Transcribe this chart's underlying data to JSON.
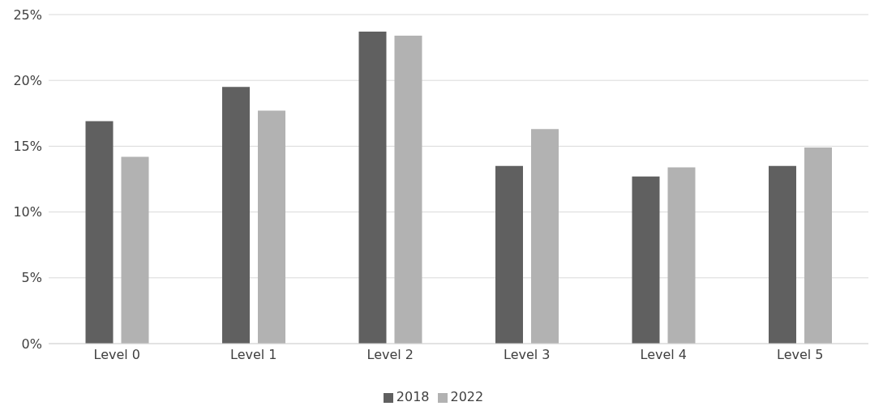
{
  "chart_data": {
    "type": "bar",
    "categories": [
      "Level 0",
      "Level 1",
      "Level 2",
      "Level 3",
      "Level 4",
      "Level 5"
    ],
    "series": [
      {
        "name": "2018",
        "color": "#606060",
        "values": [
          16.9,
          19.5,
          23.7,
          13.5,
          12.7,
          13.5
        ]
      },
      {
        "name": "2022",
        "color": "#b2b2b2",
        "values": [
          14.2,
          17.7,
          23.4,
          16.3,
          13.4,
          14.9
        ]
      }
    ],
    "ylim": [
      0,
      25
    ],
    "yticks": [
      {
        "value": 0,
        "label": "0%"
      },
      {
        "value": 5,
        "label": "5%"
      },
      {
        "value": 10,
        "label": "10%"
      },
      {
        "value": 15,
        "label": "15%"
      },
      {
        "value": 20,
        "label": "20%"
      },
      {
        "value": 25,
        "label": "25%"
      }
    ],
    "grid": "y",
    "legend": "bottom"
  }
}
